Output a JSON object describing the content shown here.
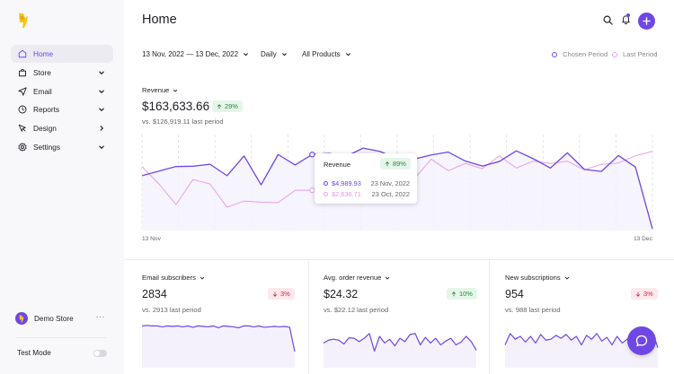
{
  "sidebar": {
    "items": [
      {
        "label": "Home",
        "icon": "home-icon",
        "active": true,
        "chevron": ""
      },
      {
        "label": "Store",
        "icon": "bag-icon",
        "active": false,
        "chevron": "down"
      },
      {
        "label": "Email",
        "icon": "send-icon",
        "active": false,
        "chevron": "down"
      },
      {
        "label": "Reports",
        "icon": "clock-icon",
        "active": false,
        "chevron": "down"
      },
      {
        "label": "Design",
        "icon": "pointer-icon",
        "active": false,
        "chevron": "right"
      },
      {
        "label": "Settings",
        "icon": "gear-icon",
        "active": false,
        "chevron": "down"
      }
    ],
    "store_name": "Demo Store",
    "store_more": "···",
    "test_mode_label": "Test Mode",
    "test_mode_on": false
  },
  "header": {
    "title": "Home",
    "icons": [
      "search-icon",
      "bell-icon",
      "plus-icon"
    ]
  },
  "filters": {
    "date_range": "13 Nov, 2022 — 13 Dec, 2022",
    "interval": "Daily",
    "products": "All Products"
  },
  "legend": {
    "chosen": "Chosen Period",
    "last": "Last Period"
  },
  "colors": {
    "accent": "#6f47e3",
    "last_period": "#e9a6e6",
    "up": "#248a3d",
    "down": "#c62a45"
  },
  "revenue": {
    "selector": "Revenue",
    "value": "$163,633.66",
    "change": "29%",
    "change_dir": "up",
    "comparison": "vs. $126,919.11 last period",
    "x_start": "13 Nov",
    "x_end": "13 Dec"
  },
  "tooltip": {
    "title": "Revenue",
    "change": "89%",
    "chosen_value": "$4,989.93",
    "chosen_date": "23 Nov, 2022",
    "last_value": "$2,636.71",
    "last_date": "23 Oct, 2022"
  },
  "cards": [
    {
      "selector": "Email subscribers",
      "value": "2834",
      "change": "3%",
      "change_dir": "down",
      "comparison": "vs. 2913 last period"
    },
    {
      "selector": "Avg. order revenue",
      "value": "$24.32",
      "change": "10%",
      "change_dir": "up",
      "comparison": "vs. $22.12 last period"
    },
    {
      "selector": "New subscriptions",
      "value": "954",
      "change": "3%",
      "change_dir": "down",
      "comparison": "vs. 988 last period"
    }
  ],
  "chart_data": [
    {
      "type": "line",
      "name": "revenue",
      "highlight_index": 10,
      "series": [
        {
          "name": "Chosen Period",
          "values": [
            {
              "x": "13 Nov",
              "y": 3600
            },
            {
              "x": "14 Nov",
              "y": 3900
            },
            {
              "x": "15 Nov",
              "y": 4200
            },
            {
              "x": "16 Nov",
              "y": 4220
            },
            {
              "x": "17 Nov",
              "y": 4350
            },
            {
              "x": "18 Nov",
              "y": 3600
            },
            {
              "x": "19 Nov",
              "y": 4900
            },
            {
              "x": "20 Nov",
              "y": 3000
            },
            {
              "x": "21 Nov",
              "y": 4990
            },
            {
              "x": "22 Nov",
              "y": 4300
            },
            {
              "x": "23 Nov",
              "y": 4990
            },
            {
              "x": "24 Nov",
              "y": 5060
            },
            {
              "x": "25 Nov",
              "y": 4870
            },
            {
              "x": "26 Nov",
              "y": 5410
            },
            {
              "x": "27 Nov",
              "y": 5190
            },
            {
              "x": "28 Nov",
              "y": 4700
            },
            {
              "x": "29 Nov",
              "y": 4690
            },
            {
              "x": "30 Nov",
              "y": 4960
            },
            {
              "x": "1 Dec",
              "y": 5150
            },
            {
              "x": "2 Dec",
              "y": 4560
            },
            {
              "x": "3 Dec",
              "y": 4230
            },
            {
              "x": "4 Dec",
              "y": 4530
            },
            {
              "x": "5 Dec",
              "y": 5230
            },
            {
              "x": "6 Dec",
              "y": 4710
            },
            {
              "x": "7 Dec",
              "y": 4100
            },
            {
              "x": "8 Dec",
              "y": 5100
            },
            {
              "x": "9 Dec",
              "y": 4010
            },
            {
              "x": "10 Dec",
              "y": 3880
            },
            {
              "x": "11 Dec",
              "y": 4920
            },
            {
              "x": "12 Dec",
              "y": 4170
            },
            {
              "x": "13 Dec",
              "y": 100
            }
          ]
        },
        {
          "name": "Last Period",
          "values": [
            {
              "x": "14 Oct",
              "y": 4200
            },
            {
              "x": "15 Oct",
              "y": 3050
            },
            {
              "x": "16 Oct",
              "y": 1700
            },
            {
              "x": "17 Oct",
              "y": 3350
            },
            {
              "x": "18 Oct",
              "y": 3050
            },
            {
              "x": "19 Oct",
              "y": 1530
            },
            {
              "x": "20 Oct",
              "y": 1930
            },
            {
              "x": "21 Oct",
              "y": 1860
            },
            {
              "x": "22 Oct",
              "y": 1830
            },
            {
              "x": "23 Oct",
              "y": 2640
            },
            {
              "x": "24 Oct",
              "y": 2640
            },
            {
              "x": "25 Oct",
              "y": 2640
            },
            {
              "x": "26 Oct",
              "y": 3800
            },
            {
              "x": "27 Oct",
              "y": 4440
            },
            {
              "x": "28 Oct",
              "y": 3420
            },
            {
              "x": "29 Oct",
              "y": 4150
            },
            {
              "x": "30 Oct",
              "y": 3390
            },
            {
              "x": "31 Oct",
              "y": 4680
            },
            {
              "x": "1 Nov",
              "y": 3930
            },
            {
              "x": "2 Nov",
              "y": 4400
            },
            {
              "x": "3 Nov",
              "y": 4060
            },
            {
              "x": "4 Nov",
              "y": 4900
            },
            {
              "x": "5 Nov",
              "y": 4100
            },
            {
              "x": "6 Nov",
              "y": 4560
            },
            {
              "x": "7 Nov",
              "y": 4400
            },
            {
              "x": "8 Nov",
              "y": 4550
            },
            {
              "x": "9 Nov",
              "y": 3980
            },
            {
              "x": "10 Nov",
              "y": 4340
            },
            {
              "x": "11 Nov",
              "y": 4430
            },
            {
              "x": "12 Nov",
              "y": 4900
            },
            {
              "x": "13 Nov",
              "y": 5200
            }
          ]
        }
      ],
      "ylim": [
        0,
        6300
      ],
      "grid": "vertical-dashed"
    },
    {
      "type": "line",
      "name": "email-subscribers",
      "values": [
        88,
        89,
        88,
        88,
        86,
        88,
        87,
        88,
        86,
        88,
        85,
        88,
        87,
        86,
        88,
        84,
        88,
        87,
        86,
        84,
        88,
        88,
        86,
        88,
        85,
        86,
        87,
        86,
        87,
        85,
        34
      ],
      "ylim": [
        0,
        100
      ]
    },
    {
      "type": "line",
      "name": "avg-order-revenue",
      "values": [
        52,
        58,
        60,
        58,
        50,
        63,
        62,
        55,
        62,
        72,
        35,
        66,
        52,
        60,
        46,
        62,
        55,
        70,
        72,
        48,
        64,
        52,
        62,
        48,
        56,
        62,
        48,
        54,
        66,
        55,
        37
      ],
      "ylim": [
        0,
        100
      ]
    },
    {
      "type": "line",
      "name": "new-subscriptions",
      "values": [
        48,
        72,
        60,
        66,
        54,
        66,
        52,
        70,
        58,
        60,
        68,
        62,
        70,
        58,
        66,
        48,
        68,
        60,
        72,
        56,
        64,
        48,
        66,
        52,
        60,
        70,
        54,
        66,
        56,
        74,
        42
      ],
      "ylim": [
        0,
        100
      ]
    }
  ]
}
